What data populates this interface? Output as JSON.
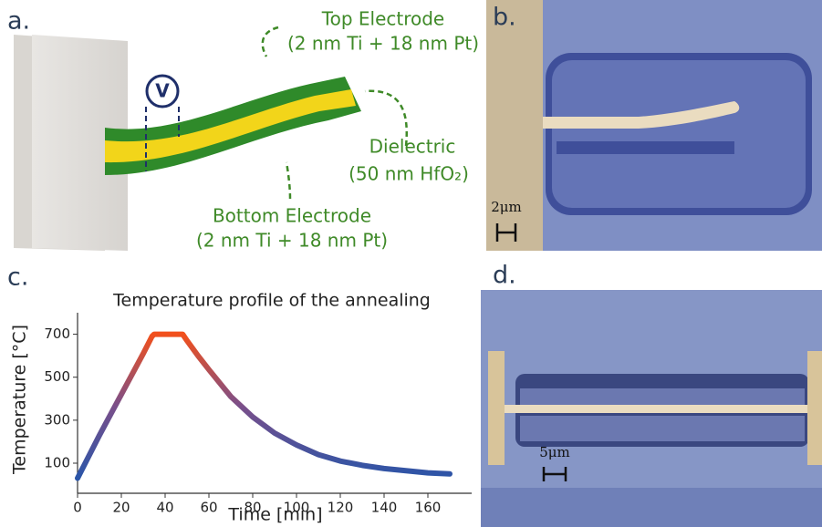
{
  "panel_labels": [
    "a.",
    "b.",
    "c.",
    "d."
  ],
  "panel_a": {
    "voltmeter": "V",
    "top_electrode": [
      "Top Electrode",
      "(2 nm Ti + 18 nm Pt)"
    ],
    "dielectric": [
      "Dielectric",
      "(50 nm HfO₂)"
    ],
    "bottom_electrode": [
      "Bottom Electrode",
      "(2 nm Ti + 18 nm Pt)"
    ]
  },
  "panel_b": {
    "scale_bar": "2μm"
  },
  "panel_d": {
    "scale_bar": "5μm"
  },
  "chart_data": {
    "type": "line",
    "title": "Temperature profile of the annealing",
    "x_label": "Time [min]",
    "y_label": "Temperature [°C]",
    "x": [
      0,
      10,
      20,
      30,
      34,
      35,
      48,
      50,
      55,
      60,
      70,
      80,
      90,
      100,
      110,
      120,
      130,
      140,
      150,
      160,
      170
    ],
    "values": [
      30,
      230,
      420,
      610,
      690,
      700,
      700,
      670,
      600,
      535,
      410,
      315,
      240,
      185,
      140,
      110,
      90,
      75,
      65,
      55,
      50
    ],
    "gradient": [
      "#2a55a8",
      "#7a4f8a",
      "#f2501c"
    ],
    "xlim": [
      0,
      180
    ],
    "ylim": [
      -40,
      800
    ],
    "xticks": [
      0,
      20,
      40,
      60,
      80,
      100,
      120,
      140,
      160
    ],
    "yticks": [
      100,
      300,
      500,
      700
    ]
  }
}
